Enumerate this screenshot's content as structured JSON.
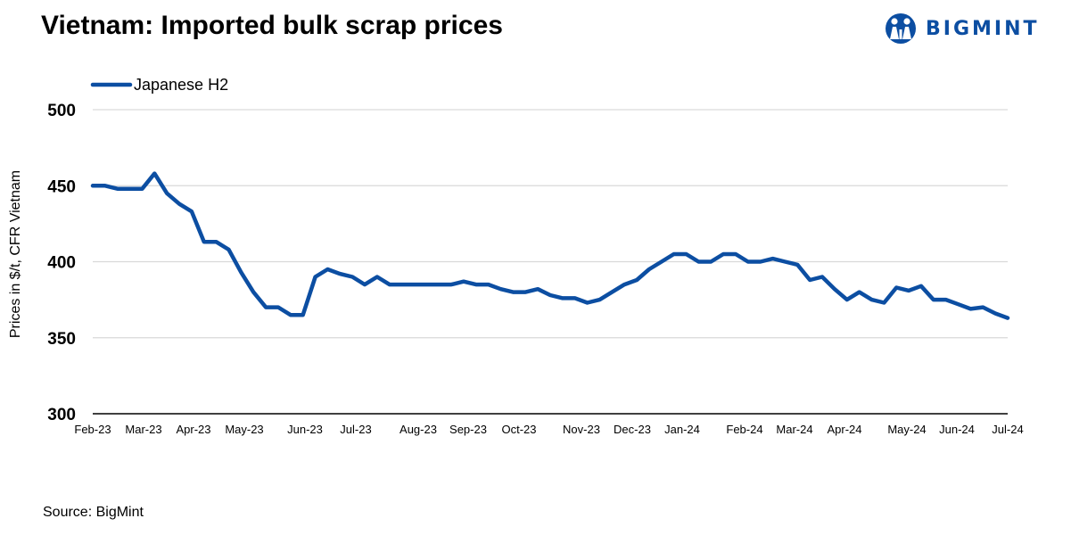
{
  "header": {
    "title": "Vietnam: Imported bulk scrap prices",
    "logo_text": "BIGMINT"
  },
  "footer": {
    "source": "Source: BigMint"
  },
  "colors": {
    "series": "#0c4ea2",
    "grid": "#d9d9d9",
    "axis": "#000000",
    "logo": "#0c4ea2"
  },
  "chart_data": {
    "type": "line",
    "title": "Vietnam: Imported bulk scrap prices",
    "ylabel": "Prices in $/t, CFR Vietnam",
    "xlabel": "",
    "ylim": [
      300,
      500
    ],
    "yticks": [
      "500",
      "450",
      "400",
      "350",
      "300"
    ],
    "grid": "horizontal",
    "legend_position": "top-left",
    "x_tick_labels": [
      "Feb-23",
      "Mar-23",
      "Apr-23",
      "May-23",
      "Jun-23",
      "Jul-23",
      "Aug-23",
      "Sep-23",
      "Oct-23",
      "Nov-23",
      "Dec-23",
      "Jan-24",
      "Feb-24",
      "Mar-24",
      "Apr-24",
      "May-24",
      "Jun-24",
      "Jul-24"
    ],
    "series": [
      {
        "name": "Japanese H2",
        "values": [
          450,
          450,
          448,
          448,
          448,
          458,
          445,
          438,
          433,
          413,
          413,
          408,
          393,
          380,
          370,
          370,
          365,
          365,
          390,
          395,
          392,
          390,
          385,
          390,
          385,
          385,
          385,
          385,
          385,
          385,
          387,
          385,
          385,
          382,
          380,
          380,
          382,
          378,
          376,
          376,
          373,
          375,
          380,
          385,
          388,
          395,
          400,
          405,
          405,
          400,
          400,
          405,
          405,
          400,
          400,
          402,
          400,
          398,
          388,
          390,
          382,
          375,
          380,
          375,
          373,
          383,
          381,
          384,
          375,
          375,
          372,
          369,
          370,
          366,
          363
        ]
      }
    ]
  }
}
